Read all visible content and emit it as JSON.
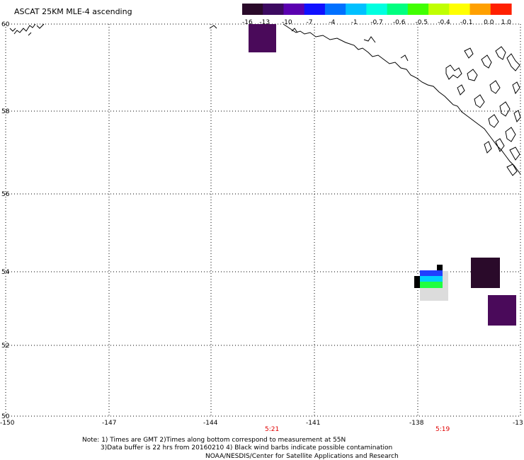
{
  "title": "ASCAT 25KM MLE-4 ascending",
  "colorbar": {
    "labels": [
      "-16",
      "-13",
      "-10",
      "-7",
      "-4",
      "-1",
      "-0.7",
      "-0.6",
      "-0.5",
      "-0.4",
      "-0.1",
      "0.0",
      "1.0"
    ],
    "colors": [
      "#2a0a2a",
      "#3c0a60",
      "#5a00b0",
      "#1010ff",
      "#0070ff",
      "#00c0ff",
      "#00ffe0",
      "#00ff80",
      "#40ff00",
      "#c0ff00",
      "#ffff00",
      "#ffa000",
      "#ff2000"
    ]
  },
  "axes": {
    "lat_labels": [
      "60",
      "58",
      "56",
      "54",
      "52",
      "50"
    ],
    "lon_labels": [
      "-150",
      "-147",
      "-144",
      "-141",
      "-138",
      "-13"
    ]
  },
  "pass_times": [
    {
      "label": "5:21",
      "color": "#e00000"
    },
    {
      "label": "5:19",
      "color": "#e00000"
    }
  ],
  "footer": {
    "line1": "Note: 1) Times are GMT 2)Times along bottom correspond to measurement at 55N",
    "line2": "3)Data buffer is 22 hrs from 20160210 4) Black wind barbs indicate possible contamination",
    "line3": "NOAA/NESDIS/Center for Satellite Applications and Research"
  }
}
